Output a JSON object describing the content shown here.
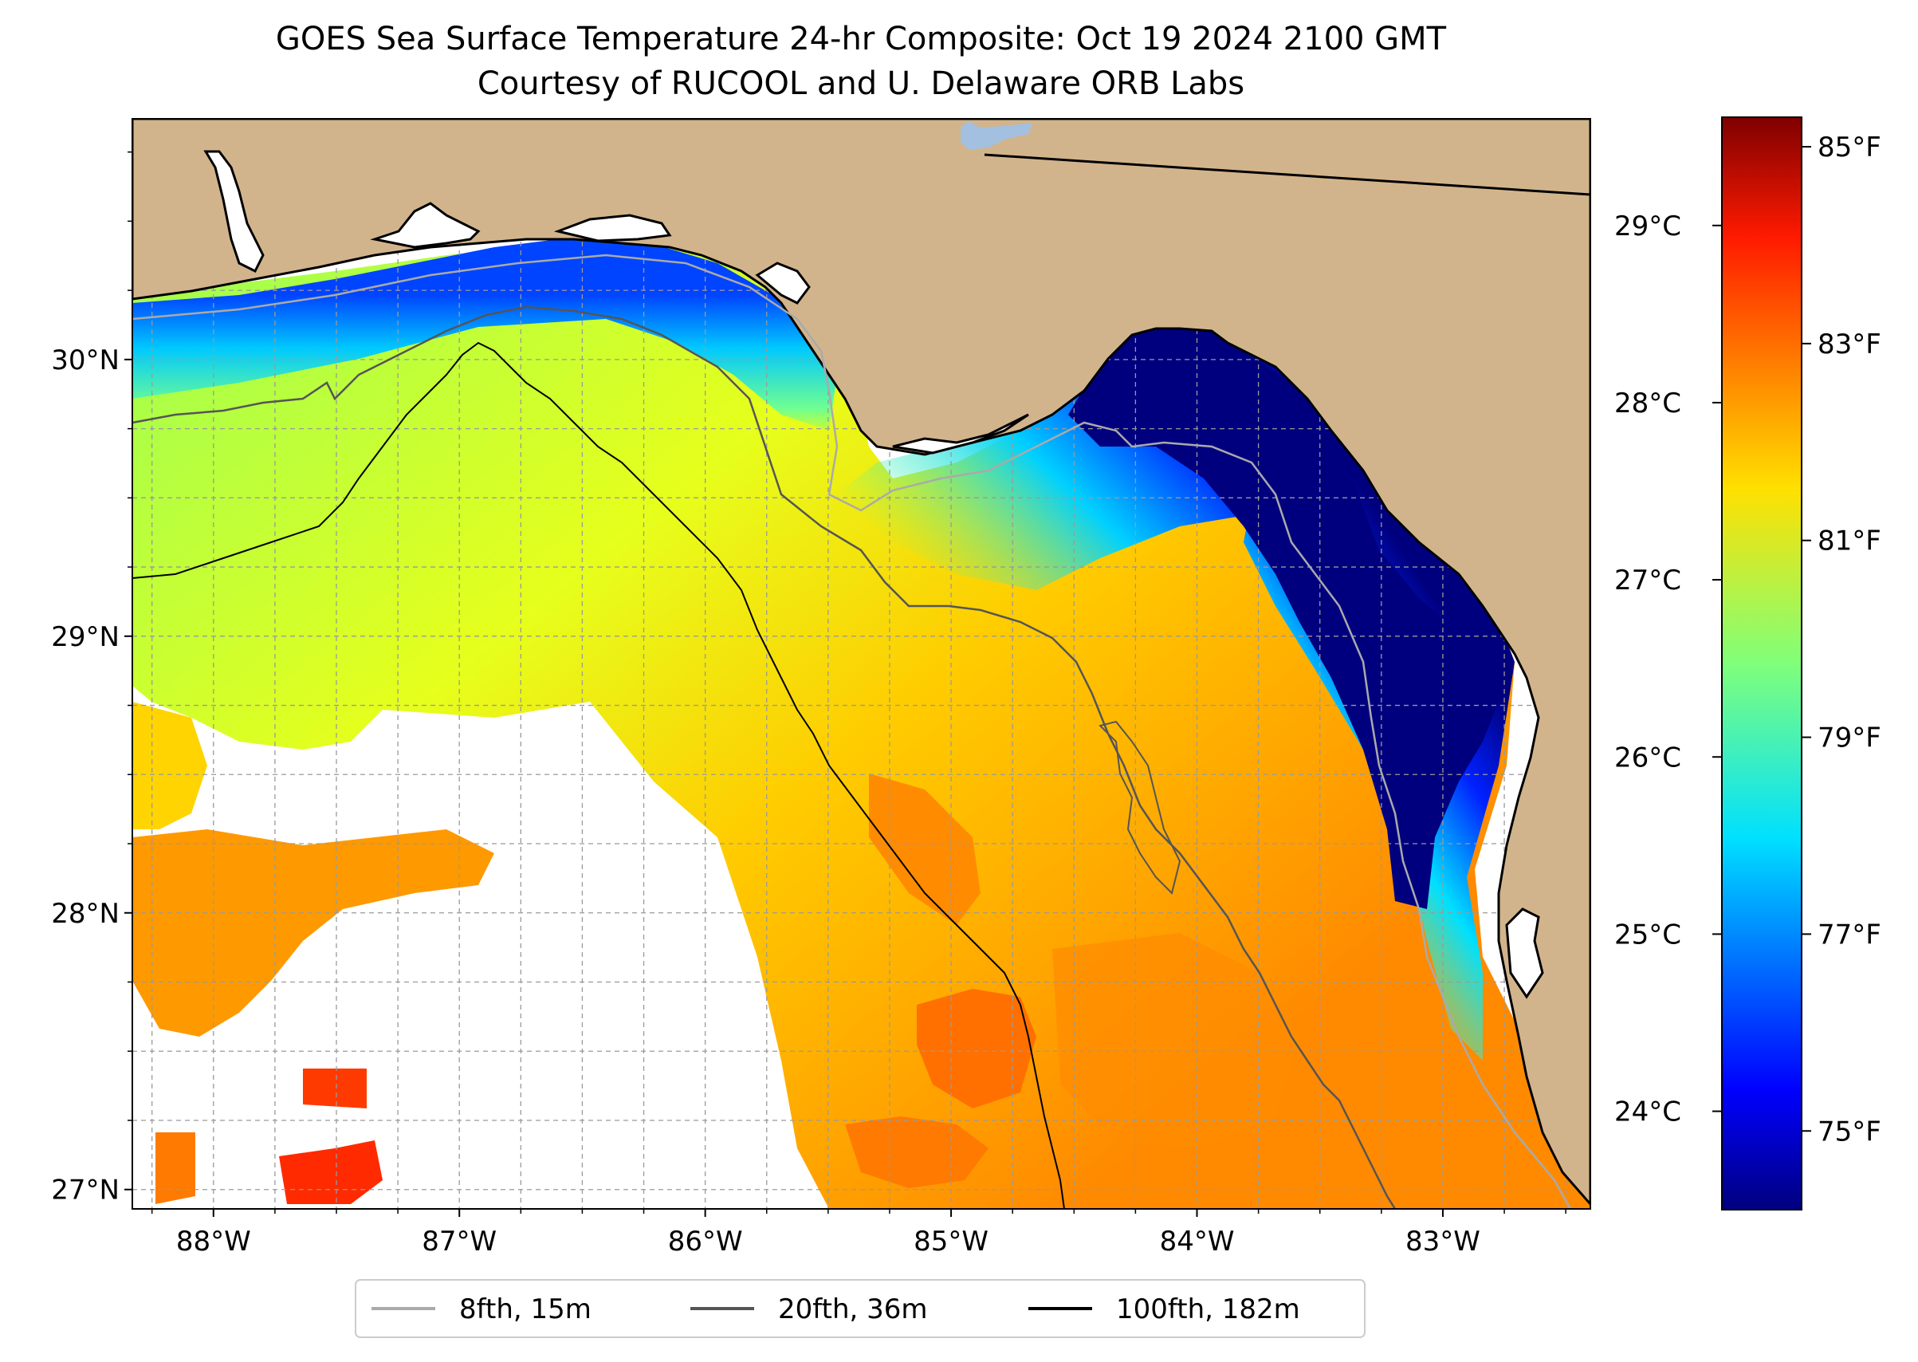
{
  "title": {
    "line1": "GOES Sea Surface Temperature 24-hr Composite: Oct 19 2024 2100 GMT",
    "line2": "Courtesy of RUCOOL and U. Delaware ORB Labs"
  },
  "map": {
    "lon_range": [
      -88.33,
      -82.4
    ],
    "lat_range": [
      26.93,
      30.87
    ],
    "lon_ticks": [
      "88°W",
      "87°W",
      "86°W",
      "85°W",
      "84°W",
      "83°W"
    ],
    "lat_ticks": [
      "30°N",
      "29°N",
      "28°N",
      "27°N"
    ],
    "land_color": "#d2b48c",
    "water_body_color": "#a3c0e0",
    "gridlines": true
  },
  "colorbar": {
    "celsius_ticks": [
      "29°C",
      "28°C",
      "27°C",
      "26°C",
      "25°C",
      "24°C"
    ],
    "fahrenheit_ticks": [
      "85°F",
      "83°F",
      "81°F",
      "79°F",
      "77°F",
      "75°F"
    ],
    "range_f": [
      74.2,
      85.3
    ],
    "colormap": "jet"
  },
  "legend": {
    "items": [
      {
        "label": "8fth, 15m",
        "color": "#aaaaaa"
      },
      {
        "label": "20fth, 36m",
        "color": "#555555"
      },
      {
        "label": "100fth, 182m",
        "color": "#000000"
      }
    ],
    "placement": "bottom-center"
  }
}
